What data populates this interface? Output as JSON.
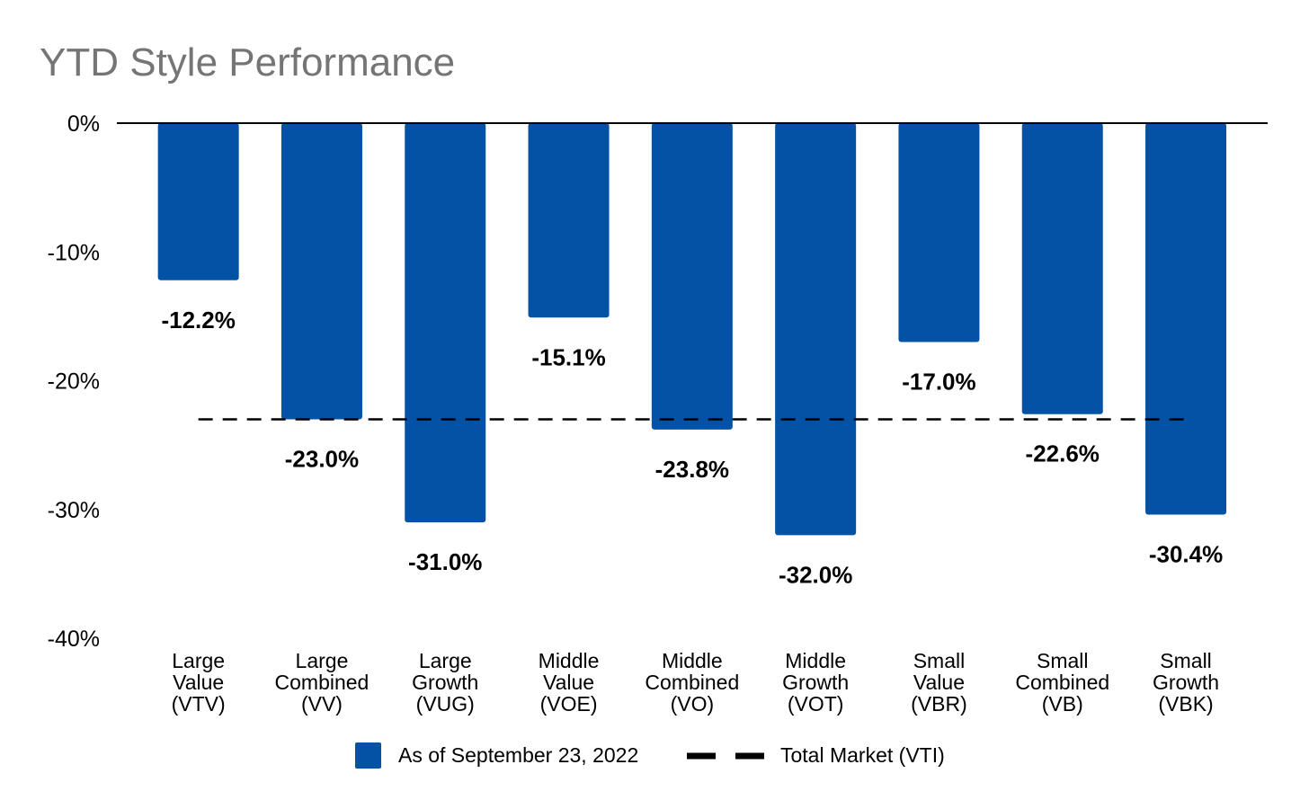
{
  "chart_data": {
    "type": "bar",
    "title": "YTD Style Performance",
    "categories": [
      [
        "Large",
        "Value",
        "(VTV)"
      ],
      [
        "Large",
        "Combined",
        "(VV)"
      ],
      [
        "Large",
        "Growth",
        "(VUG)"
      ],
      [
        "Middle",
        "Value",
        "(VOE)"
      ],
      [
        "Middle",
        "Combined",
        "(VO)"
      ],
      [
        "Middle",
        "Growth",
        "(VOT)"
      ],
      [
        "Small",
        "Value",
        "(VBR)"
      ],
      [
        "Small",
        "Combined",
        "(VB)"
      ],
      [
        "Small",
        "Growth",
        "(VBK)"
      ]
    ],
    "series": [
      {
        "name": "As of September 23, 2022",
        "color": "#0352a5",
        "values": [
          -12.2,
          -23.0,
          -31.0,
          -15.1,
          -23.8,
          -32.0,
          -17.0,
          -22.6,
          -30.4
        ],
        "labels": [
          "-12.2%",
          "-23.0%",
          "-31.0%",
          "-15.1%",
          "-23.8%",
          "-32.0%",
          "-17.0%",
          "-22.6%",
          "-30.4%"
        ]
      }
    ],
    "reference_line": {
      "name": "Total Market (VTI)",
      "value": -23.0,
      "style": "dashed",
      "color": "#000000"
    },
    "yticks": [
      {
        "value": 0,
        "label": "0%"
      },
      {
        "value": -10,
        "label": "-10%"
      },
      {
        "value": -20,
        "label": "-20%"
      },
      {
        "value": -30,
        "label": "-30%"
      },
      {
        "value": -40,
        "label": "-40%"
      }
    ],
    "ylim": [
      -40,
      0
    ],
    "xlabel": "",
    "ylabel": "",
    "grid": false,
    "legend_position": "bottom"
  }
}
